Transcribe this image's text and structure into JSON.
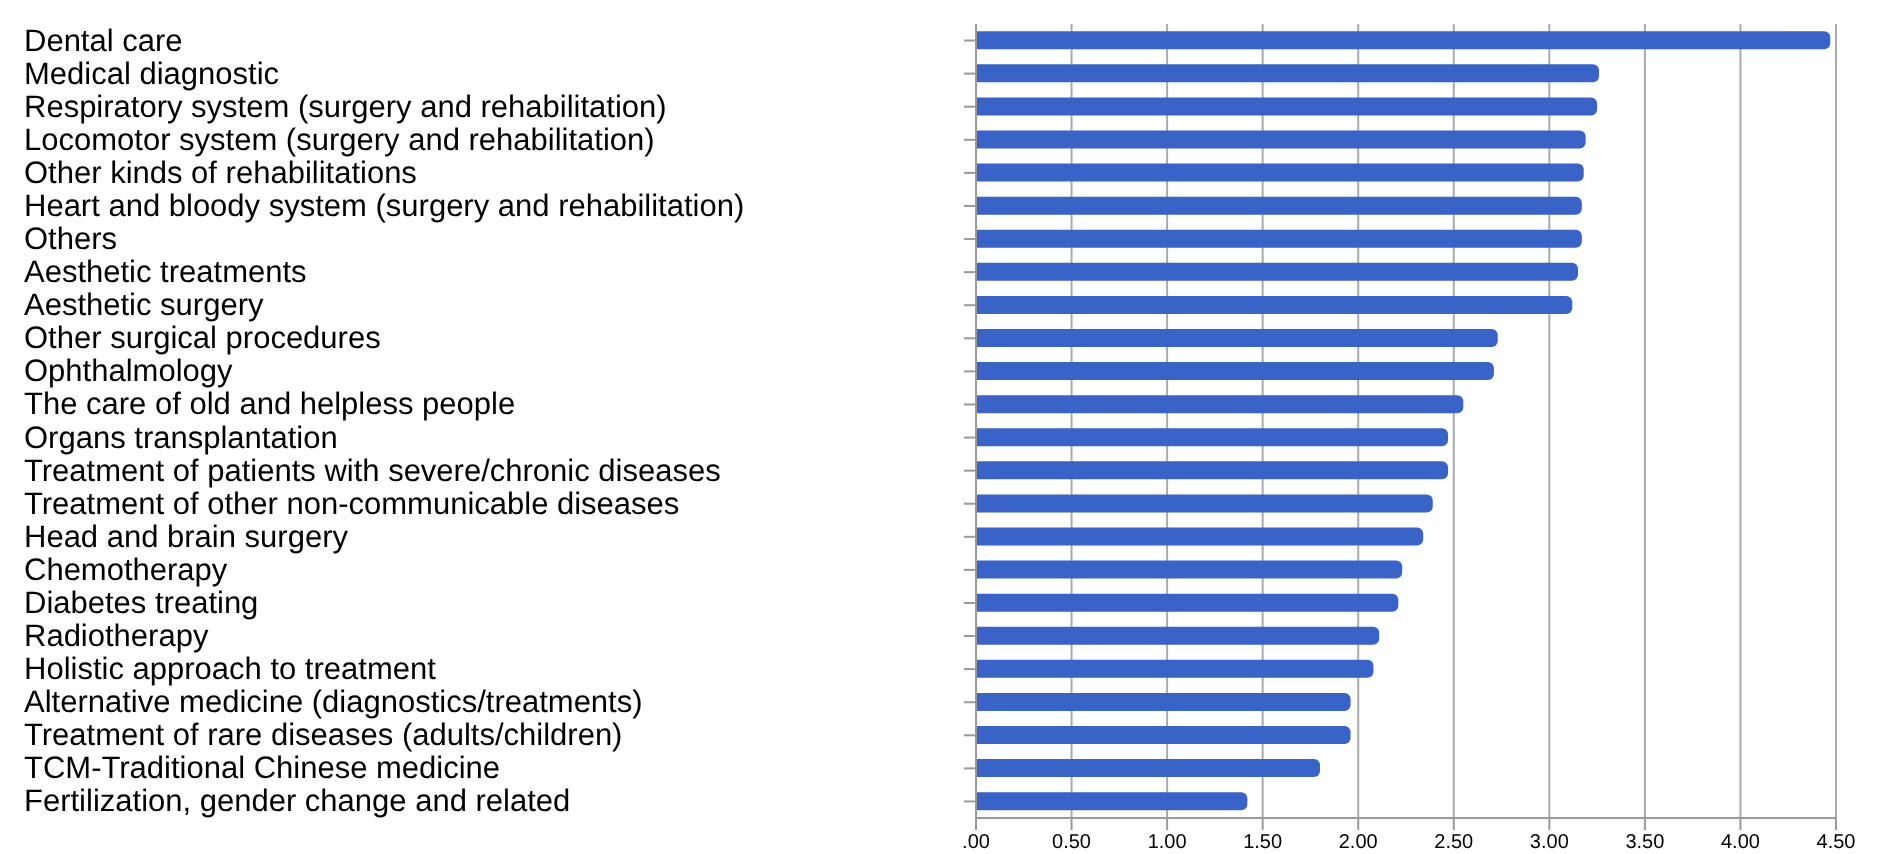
{
  "chart_data": {
    "type": "bar",
    "orientation": "horizontal",
    "categories": [
      "Dental care",
      "Medical diagnostic",
      "Respiratory system (surgery and rehabilitation)",
      "Locomotor system (surgery and rehabilitation)",
      "Other kinds of rehabilitations",
      "Heart and bloody system (surgery and rehabilitation)",
      "Others",
      "Aesthetic treatments",
      "Aesthetic surgery",
      "Other surgical procedures",
      "Ophthalmology",
      "The care of old and helpless people",
      "Organs transplantation",
      "Treatment of patients with severe/chronic diseases",
      "Treatment of other non-communicable diseases",
      "Head and brain surgery",
      "Chemotherapy",
      "Diabetes treating",
      "Radiotherapy",
      "Holistic approach to treatment",
      "Alternative medicine (diagnostics/treatments)",
      "Treatment of rare diseases (adults/children)",
      "TCM-Traditional Chinese medicine",
      "Fertilization, gender change and related"
    ],
    "values": [
      4.47,
      3.26,
      3.25,
      3.19,
      3.18,
      3.17,
      3.17,
      3.15,
      3.12,
      2.73,
      2.71,
      2.55,
      2.47,
      2.47,
      2.39,
      2.34,
      2.23,
      2.21,
      2.11,
      2.08,
      1.96,
      1.96,
      1.8,
      1.42
    ],
    "color": "#3a63c8",
    "xlim": [
      0,
      4.5
    ],
    "xticks": [
      {
        "value": 0,
        "label": ".00"
      },
      {
        "value": 0.5,
        "label": "0.50"
      },
      {
        "value": 1,
        "label": "1.00"
      },
      {
        "value": 1.5,
        "label": "1.50"
      },
      {
        "value": 2,
        "label": "2.00"
      },
      {
        "value": 2.5,
        "label": "2.50"
      },
      {
        "value": 3,
        "label": "3.00"
      },
      {
        "value": 3.5,
        "label": "3.50"
      },
      {
        "value": 4,
        "label": "4.00"
      },
      {
        "value": 4.5,
        "label": "4.50"
      }
    ],
    "grid": "x"
  }
}
